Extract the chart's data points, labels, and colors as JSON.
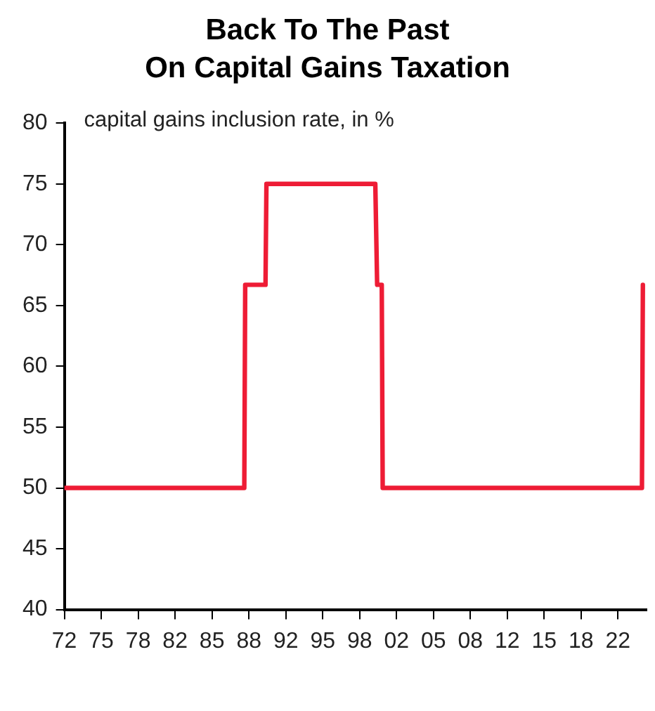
{
  "chart_data": {
    "type": "line",
    "title": "Back To The Past\nOn Capital Gains Taxation",
    "ylabel": "capital gains inclusion rate, in %",
    "x": [
      "1972-01",
      "1988-04",
      "1988-05",
      "1990-03",
      "1990-04",
      "2000-02",
      "2000-04",
      "2000-09",
      "2000-10",
      "2024-03",
      "2024-04"
    ],
    "series": [
      {
        "color": "#ee1c35",
        "values": [
          50,
          50,
          66.7,
          66.7,
          75,
          75,
          66.7,
          66.7,
          50,
          50,
          66.7
        ]
      }
    ],
    "xlim": [
      "1972-01",
      "2024-08"
    ],
    "xticks": [
      {
        "value": "1972-01",
        "label": "72"
      },
      {
        "value": "1975-05",
        "label": "75"
      },
      {
        "value": "1978-09",
        "label": "78"
      },
      {
        "value": "1982-01",
        "label": "82"
      },
      {
        "value": "1985-05",
        "label": "85"
      },
      {
        "value": "1988-09",
        "label": "88"
      },
      {
        "value": "1992-01",
        "label": "92"
      },
      {
        "value": "1995-05",
        "label": "95"
      },
      {
        "value": "1998-09",
        "label": "98"
      },
      {
        "value": "2002-01",
        "label": "02"
      },
      {
        "value": "2005-05",
        "label": "05"
      },
      {
        "value": "2008-09",
        "label": "08"
      },
      {
        "value": "2012-01",
        "label": "12"
      },
      {
        "value": "2015-05",
        "label": "15"
      },
      {
        "value": "2018-09",
        "label": "18"
      },
      {
        "value": "2022-01",
        "label": "22"
      }
    ],
    "ylim": [
      40,
      80
    ],
    "yticks": [
      40,
      45,
      50,
      55,
      60,
      65,
      70,
      75,
      80
    ],
    "grid": false,
    "legend": false,
    "marker": "none",
    "line_style": "solid"
  }
}
